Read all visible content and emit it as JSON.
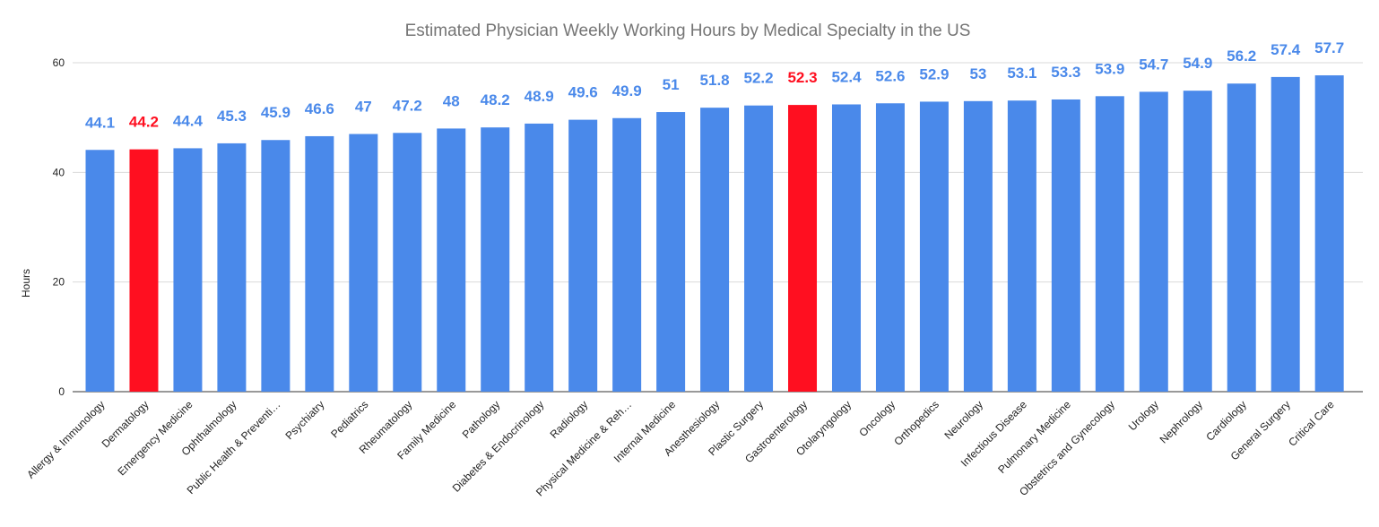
{
  "chart_data": {
    "type": "bar",
    "title": "Estimated Physician Weekly Working Hours by Medical Specialty in the US",
    "xlabel": "",
    "ylabel": "Hours",
    "ylim": [
      0,
      60
    ],
    "yticks": [
      "0",
      "20",
      "40",
      "60"
    ],
    "grid": true,
    "colors": {
      "default": "#4a89ea",
      "highlight": "#ff0f20"
    },
    "categories": [
      "Allergy & Immunology",
      "Dermatology",
      "Emergency Medicine",
      "Ophthalmology",
      "Public Health & Preventi…",
      "Psychiatry",
      "Pediatrics",
      "Rheumatology",
      "Family Medicine",
      "Pathology",
      "Diabetes & Endocrinology",
      "Radiology",
      "Physical Medicine & Reh…",
      "Internal Medicine",
      "Anesthesiology",
      "Plastic Surgery",
      "Gastroenterology",
      "Otolaryngology",
      "Oncology",
      "Orthopedics",
      "Neurology",
      "Infectious Disease",
      "Pulmonary Medicine",
      "Obstetrics and Gynecology",
      "Urology",
      "Nephrology",
      "Cardiology",
      "General Surgery",
      "Critical Care"
    ],
    "values": [
      44.1,
      44.2,
      44.4,
      45.3,
      45.9,
      46.6,
      47,
      47.2,
      48,
      48.2,
      48.9,
      49.6,
      49.9,
      51,
      51.8,
      52.2,
      52.3,
      52.4,
      52.6,
      52.9,
      53,
      53.1,
      53.3,
      53.9,
      54.7,
      54.9,
      56.2,
      57.4,
      57.7
    ],
    "labels": [
      "44.1",
      "44.2",
      "44.4",
      "45.3",
      "45.9",
      "46.6",
      "47",
      "47.2",
      "48",
      "48.2",
      "48.9",
      "49.6",
      "49.9",
      "51",
      "51.8",
      "52.2",
      "52.3",
      "52.4",
      "52.6",
      "52.9",
      "53",
      "53.1",
      "53.3",
      "53.9",
      "54.7",
      "54.9",
      "56.2",
      "57.4",
      "57.7"
    ],
    "highlighted": [
      "Dermatology",
      "Gastroenterology"
    ]
  }
}
